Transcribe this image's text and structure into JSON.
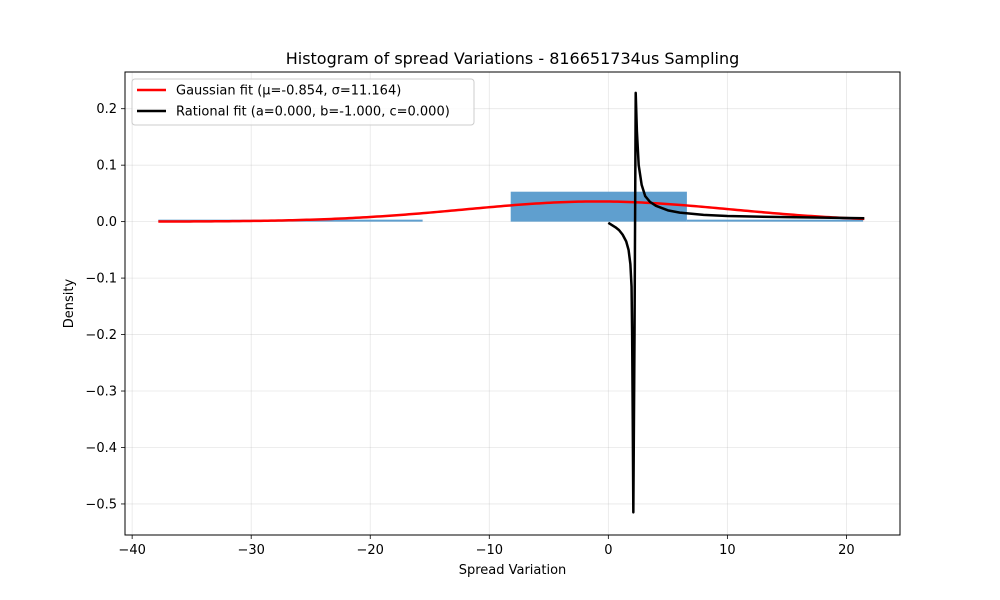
{
  "chart_data": {
    "type": "bar",
    "title": "Histogram of spread Variations - 816651734us Sampling",
    "xlabel": "Spread Variation",
    "ylabel": "Density",
    "xlim": [
      -40.6,
      24.5
    ],
    "ylim": [
      -0.555,
      0.265
    ],
    "xticks": [
      -40,
      -30,
      -20,
      -10,
      0,
      10,
      20
    ],
    "yticks": [
      -0.5,
      -0.4,
      -0.3,
      -0.2,
      -0.1,
      0.0,
      0.1,
      0.2
    ],
    "grid": true,
    "legend_position": "top-left",
    "histogram": {
      "color": "#5f9fcf",
      "bins": [
        {
          "x0": -37.8,
          "x1": -15.6,
          "value": 0.0035
        },
        {
          "x0": -8.2,
          "x1": 6.6,
          "value": 0.053
        },
        {
          "x0": 6.6,
          "x1": 21.4,
          "value": 0.0035
        }
      ]
    },
    "series": [
      {
        "name": "Gaussian fit (μ=-0.854, σ=11.164)",
        "color": "#ff0000",
        "kind": "gaussian",
        "mu": -0.854,
        "sigma": 11.164,
        "x_range": [
          -37.8,
          21.5
        ]
      },
      {
        "name": "Rational fit (a=0.000, b=-1.000, c=0.000)",
        "color": "#000000",
        "kind": "rational",
        "points": [
          [
            0.0,
            -0.002
          ],
          [
            0.3,
            -0.006
          ],
          [
            0.6,
            -0.01
          ],
          [
            0.9,
            -0.015
          ],
          [
            1.2,
            -0.023
          ],
          [
            1.5,
            -0.035
          ],
          [
            1.7,
            -0.05
          ],
          [
            1.85,
            -0.075
          ],
          [
            1.95,
            -0.115
          ],
          [
            2.0,
            -0.2
          ],
          [
            2.05,
            -0.35
          ],
          [
            2.1,
            -0.515
          ],
          [
            2.2,
            -0.2
          ],
          [
            2.3,
            0.228
          ],
          [
            2.4,
            0.16
          ],
          [
            2.55,
            0.1
          ],
          [
            2.8,
            0.065
          ],
          [
            3.1,
            0.045
          ],
          [
            3.5,
            0.035
          ],
          [
            4.0,
            0.028
          ],
          [
            5.0,
            0.02
          ],
          [
            6.0,
            0.016
          ],
          [
            8.0,
            0.012
          ],
          [
            10.0,
            0.01
          ],
          [
            12.0,
            0.009
          ],
          [
            15.0,
            0.008
          ],
          [
            18.0,
            0.007
          ],
          [
            21.5,
            0.006
          ]
        ]
      }
    ]
  }
}
